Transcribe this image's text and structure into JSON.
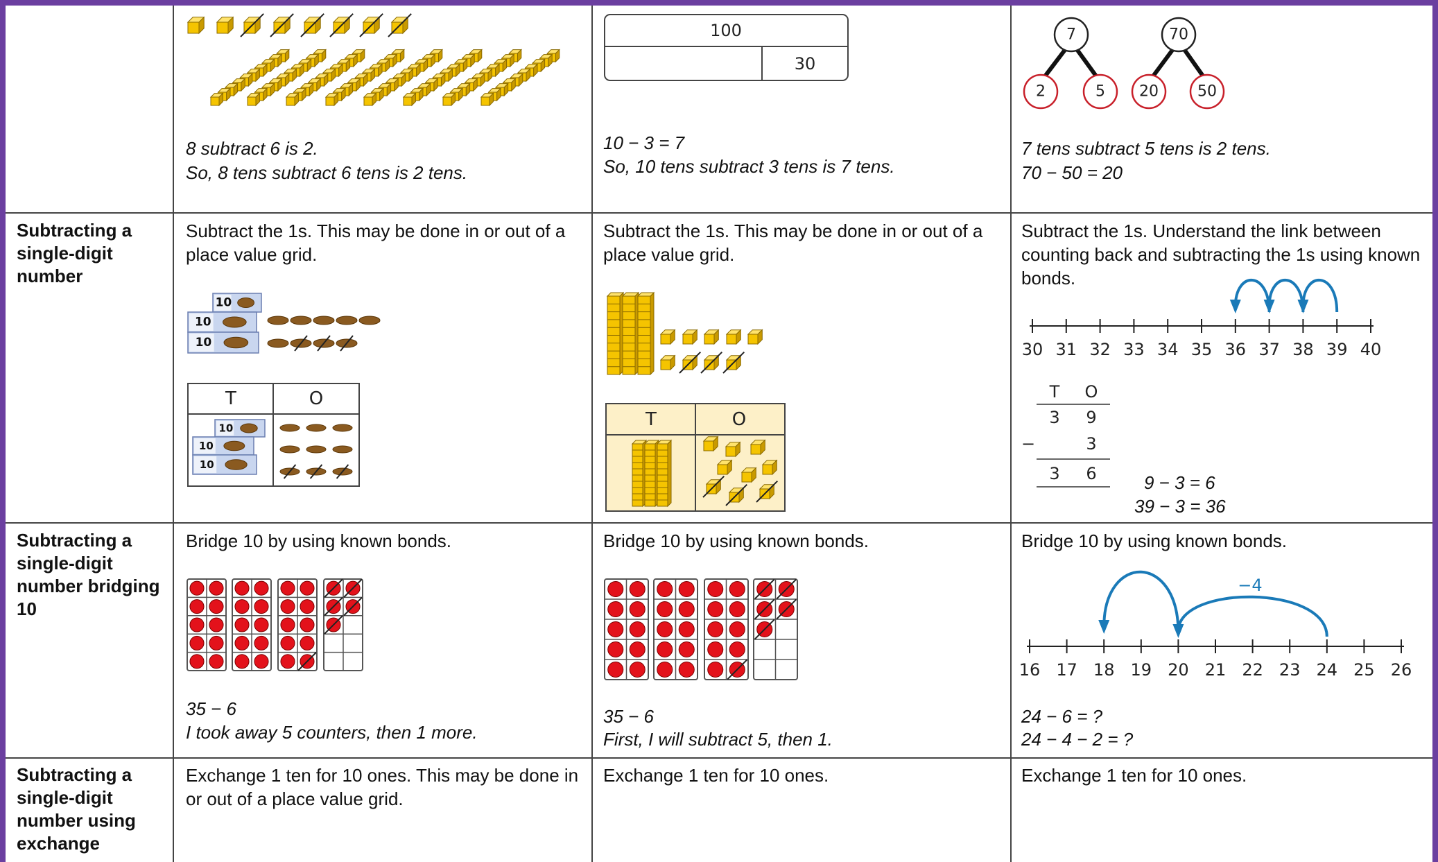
{
  "table": {
    "rows": [
      {
        "cells": [
          {
            "captions": [
              "8 subtract 6 is 2.",
              "So, 8 tens subtract 6 tens is 2 tens."
            ]
          },
          {
            "bar_model": {
              "whole": 100,
              "part": 30
            },
            "captions": [
              "10 − 3 = 7",
              "So, 10 tens subtract 3 tens is 7 tens."
            ]
          },
          {
            "part_whole_models": [
              {
                "whole": 7,
                "parts": [
                  2,
                  5
                ]
              },
              {
                "whole": 70,
                "parts": [
                  20,
                  50
                ]
              }
            ],
            "captions": [
              "7 tens subtract 5 tens is 2 tens.",
              "70 − 50 = 20"
            ]
          }
        ]
      },
      {
        "heading": "Subtracting a single-digit number",
        "cells": [
          {
            "text": "Subtract the 1s. This may be done in or out of a place value grid.",
            "counter_label": 10,
            "place_value_headers": [
              "T",
              "O"
            ]
          },
          {
            "text": "Subtract the 1s. This may be done in or out of a place value grid.",
            "place_value_headers": [
              "T",
              "O"
            ]
          },
          {
            "text": "Subtract the 1s. Understand the link between counting back and subtracting the 1s using known bonds.",
            "number_line": [
              30,
              31,
              32,
              33,
              34,
              35,
              36,
              37,
              38,
              39,
              40
            ],
            "column_method": {
              "headers": [
                "T",
                "O"
              ],
              "minuend": [
                3,
                9
              ],
              "operator": "−",
              "subtrahend": 3,
              "difference": [
                3,
                6
              ]
            },
            "captions": [
              "9 − 3 = 6",
              "39 − 3 = 36"
            ]
          }
        ]
      },
      {
        "heading": "Subtracting a single-digit number bridging 10",
        "cells": [
          {
            "text": "Bridge 10 by using known bonds.",
            "captions": [
              "35 − 6",
              "I took away 5 counters, then 1 more."
            ]
          },
          {
            "text": "Bridge 10 by using known bonds.",
            "captions": [
              "35 − 6",
              "First, I will subtract 5, then 1."
            ]
          },
          {
            "text": "Bridge 10 by using known bonds.",
            "number_line": [
              16,
              17,
              18,
              19,
              20,
              21,
              22,
              23,
              24,
              25,
              26
            ],
            "jump_label": "−4",
            "captions": [
              "24 − 6 = ?",
              "24 − 4 − 2 = ?"
            ]
          }
        ]
      },
      {
        "heading": "Subtracting a single-digit number using exchange",
        "cells": [
          {
            "text": "Exchange 1 ten for 10 ones. This may be done in or out of a place value grid."
          },
          {
            "text": "Exchange 1 ten for 10 ones."
          },
          {
            "text": "Exchange 1 ten for 10 ones."
          }
        ]
      }
    ]
  }
}
